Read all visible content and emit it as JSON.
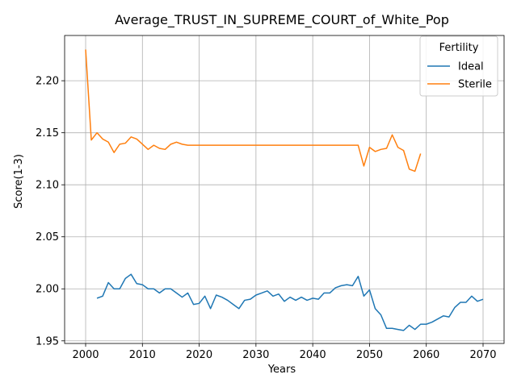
{
  "chart_data": {
    "type": "line",
    "title": "Average_TRUST_IN_SUPREME_COURT_of_White_Pop",
    "xlabel": "Years",
    "ylabel": "Score(1-3)",
    "xlim": [
      1996.3,
      2073.7
    ],
    "ylim": [
      1.9475,
      2.2435
    ],
    "xticks": [
      2000,
      2010,
      2020,
      2030,
      2040,
      2050,
      2060,
      2070
    ],
    "yticks": [
      1.95,
      2.0,
      2.05,
      2.1,
      2.15,
      2.2
    ],
    "ytick_labels": [
      "1.95",
      "2.00",
      "2.05",
      "2.10",
      "2.15",
      "2.20"
    ],
    "grid": true,
    "legend": {
      "title": "Fertility",
      "placement": "top-right"
    },
    "series": [
      {
        "name": "Ideal",
        "color": "#1f77b4",
        "x": [
          2002,
          2003,
          2004,
          2005,
          2006,
          2007,
          2008,
          2009,
          2010,
          2011,
          2012,
          2013,
          2014,
          2015,
          2016,
          2017,
          2018,
          2019,
          2020,
          2021,
          2022,
          2023,
          2024,
          2025,
          2026,
          2027,
          2028,
          2029,
          2030,
          2031,
          2032,
          2033,
          2034,
          2035,
          2036,
          2037,
          2038,
          2039,
          2040,
          2041,
          2042,
          2043,
          2044,
          2045,
          2046,
          2047,
          2048,
          2049,
          2050,
          2051,
          2052,
          2053,
          2054,
          2055,
          2056,
          2057,
          2058,
          2059,
          2060,
          2061,
          2062,
          2063,
          2064,
          2065,
          2066,
          2067,
          2068,
          2069,
          2070
        ],
        "values": [
          1.991,
          1.993,
          2.006,
          2.0,
          2.0,
          2.01,
          2.014,
          2.005,
          2.004,
          2.0,
          2.0,
          1.996,
          2.0,
          2.0,
          1.996,
          1.992,
          1.996,
          1.985,
          1.986,
          1.993,
          1.981,
          1.994,
          1.992,
          1.989,
          1.985,
          1.981,
          1.989,
          1.99,
          1.994,
          1.996,
          1.998,
          1.993,
          1.995,
          1.988,
          1.992,
          1.989,
          1.992,
          1.989,
          1.991,
          1.99,
          1.996,
          1.996,
          2.001,
          2.003,
          2.004,
          2.003,
          2.012,
          1.993,
          1.999,
          1.981,
          1.975,
          1.962,
          1.962,
          1.961,
          1.96,
          1.965,
          1.961,
          1.966,
          1.966,
          1.968,
          1.971,
          1.974,
          1.973,
          1.982,
          1.987,
          1.987,
          1.993,
          1.988,
          1.99
        ]
      },
      {
        "name": "Sterile",
        "color": "#ff7f0e",
        "x": [
          2000,
          2001,
          2002,
          2003,
          2004,
          2005,
          2006,
          2007,
          2008,
          2009,
          2010,
          2011,
          2012,
          2013,
          2014,
          2015,
          2016,
          2017,
          2018,
          2019,
          2020,
          2021,
          2022,
          2023,
          2024,
          2025,
          2026,
          2027,
          2028,
          2029,
          2030,
          2031,
          2032,
          2033,
          2034,
          2035,
          2036,
          2037,
          2038,
          2039,
          2040,
          2041,
          2042,
          2043,
          2044,
          2045,
          2046,
          2047,
          2048,
          2049,
          2050,
          2051,
          2052,
          2053,
          2054,
          2055,
          2056,
          2057,
          2058,
          2059
        ],
        "values": [
          2.23,
          2.143,
          2.15,
          2.144,
          2.141,
          2.131,
          2.139,
          2.14,
          2.146,
          2.144,
          2.139,
          2.134,
          2.138,
          2.135,
          2.134,
          2.139,
          2.141,
          2.139,
          2.138,
          2.138,
          2.138,
          2.138,
          2.138,
          2.138,
          2.138,
          2.138,
          2.138,
          2.138,
          2.138,
          2.138,
          2.138,
          2.138,
          2.138,
          2.138,
          2.138,
          2.138,
          2.138,
          2.138,
          2.138,
          2.138,
          2.138,
          2.138,
          2.138,
          2.138,
          2.138,
          2.138,
          2.138,
          2.138,
          2.138,
          2.118,
          2.136,
          2.132,
          2.134,
          2.135,
          2.148,
          2.136,
          2.133,
          2.115,
          2.113,
          2.13
        ]
      }
    ]
  }
}
